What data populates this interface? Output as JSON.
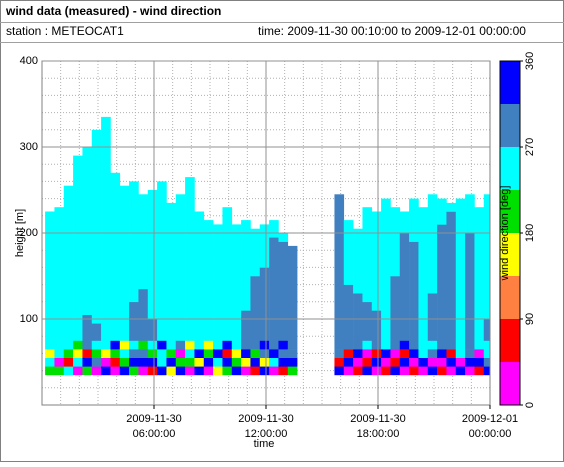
{
  "chart_data": {
    "type": "time-height",
    "title": "wind data (measured) - wind direction",
    "station": "station : METEOCAT1",
    "period": "time: 2009-11-30 00:10:00 to 2009-12-01 00:00:00",
    "xlabel": "time",
    "ylabel": "height [m]",
    "xlim": [
      "2009-11-30 00:00:00",
      "2009-12-01 00:00:00"
    ],
    "xticks": [
      "2009-11-30 06:00:00",
      "2009-11-30 12:00:00",
      "2009-11-30 18:00:00",
      "2009-12-01 00:00:00"
    ],
    "ylim": [
      0,
      400
    ],
    "yticks": [
      100,
      200,
      300,
      400
    ],
    "grid": {
      "major": true,
      "minor_y_step": 20,
      "minor_x_step_hours": 1
    },
    "cell_duration_minutes": 30,
    "low_levels": [
      35,
      45,
      55,
      65,
      75
    ],
    "columns": [
      {
        "time": "2009-11-30 00:10:00",
        "low": [
          200,
          250,
          160,
          250
        ],
        "upper": [
          [
            75,
            225,
            250
          ]
        ]
      },
      {
        "time": "2009-11-30 00:40:00",
        "low": [
          200,
          20,
          250,
          250
        ],
        "upper": [
          [
            75,
            230,
            250
          ]
        ]
      },
      {
        "time": "2009-11-30 01:10:00",
        "low": [
          250,
          70,
          200,
          250
        ],
        "upper": [
          [
            75,
            255,
            250
          ]
        ]
      },
      {
        "time": "2009-11-30 01:40:00",
        "low": [
          20,
          250,
          160,
          200
        ],
        "upper": [
          [
            75,
            290,
            250
          ]
        ]
      },
      {
        "time": "2009-11-30 02:10:00",
        "low": [
          200,
          340,
          70,
          290
        ],
        "upper": [
          [
            75,
            105,
            290
          ],
          [
            105,
            300,
            250
          ]
        ]
      },
      {
        "time": "2009-11-30 02:40:00",
        "low": [
          20,
          290,
          200,
          250
        ],
        "upper": [
          [
            75,
            95,
            290
          ],
          [
            95,
            320,
            250
          ]
        ]
      },
      {
        "time": "2009-11-30 03:10:00",
        "low": [
          340,
          20,
          160,
          250
        ],
        "upper": [
          [
            75,
            335,
            250
          ]
        ]
      },
      {
        "time": "2009-11-30 03:40:00",
        "low": [
          20,
          70,
          200,
          340
        ],
        "upper": [
          [
            75,
            270,
            250
          ]
        ]
      },
      {
        "time": "2009-11-30 04:10:00",
        "low": [
          340,
          200,
          250,
          160
        ],
        "upper": [
          [
            75,
            255,
            250
          ]
        ]
      },
      {
        "time": "2009-11-30 04:40:00",
        "low": [
          200,
          340,
          290,
          250
        ],
        "upper": [
          [
            75,
            120,
            290
          ],
          [
            120,
            260,
            250
          ]
        ]
      },
      {
        "time": "2009-11-30 05:10:00",
        "low": [
          20,
          340,
          290,
          200
        ],
        "upper": [
          [
            75,
            135,
            290
          ],
          [
            135,
            245,
            250
          ]
        ]
      },
      {
        "time": "2009-11-30 05:40:00",
        "low": [
          70,
          340,
          200,
          250
        ],
        "upper": [
          [
            75,
            100,
            290
          ],
          [
            100,
            250,
            250
          ]
        ]
      },
      {
        "time": "2009-11-30 06:10:00",
        "low": [
          340,
          250,
          250,
          340
        ],
        "upper": [
          [
            75,
            260,
            250
          ]
        ]
      },
      {
        "time": "2009-11-30 06:40:00",
        "low": [
          160,
          340,
          200,
          250
        ],
        "upper": [
          [
            75,
            235,
            250
          ]
        ]
      },
      {
        "time": "2009-11-30 07:10:00",
        "low": [
          340,
          200,
          20,
          290
        ],
        "upper": [
          [
            75,
            245,
            250
          ]
        ]
      },
      {
        "time": "2009-11-30 07:40:00",
        "low": [
          20,
          200,
          250,
          160
        ],
        "upper": [
          [
            75,
            265,
            250
          ]
        ]
      },
      {
        "time": "2009-11-30 08:10:00",
        "low": [
          340,
          160,
          340,
          250
        ],
        "upper": [
          [
            75,
            225,
            250
          ]
        ]
      },
      {
        "time": "2009-11-30 08:40:00",
        "low": [
          20,
          340,
          200,
          160
        ],
        "upper": [
          [
            75,
            215,
            250
          ]
        ]
      },
      {
        "time": "2009-11-30 09:10:00",
        "low": [
          160,
          250,
          340,
          250
        ],
        "upper": [
          [
            75,
            210,
            250
          ]
        ]
      },
      {
        "time": "2009-11-30 09:40:00",
        "low": [
          200,
          340,
          70,
          340
        ],
        "upper": [
          [
            75,
            230,
            250
          ]
        ]
      },
      {
        "time": "2009-11-30 10:10:00",
        "low": [
          340,
          200,
          160,
          250
        ],
        "upper": [
          [
            75,
            210,
            250
          ]
        ]
      },
      {
        "time": "2009-11-30 10:40:00",
        "low": [
          20,
          160,
          340,
          290
        ],
        "upper": [
          [
            75,
            110,
            290
          ],
          [
            110,
            215,
            250
          ]
        ]
      },
      {
        "time": "2009-11-30 11:10:00",
        "low": [
          70,
          340,
          200,
          290
        ],
        "upper": [
          [
            75,
            150,
            290
          ],
          [
            150,
            205,
            250
          ]
        ]
      },
      {
        "time": "2009-11-30 11:40:00",
        "low": [
          340,
          160,
          290,
          340
        ],
        "upper": [
          [
            75,
            160,
            290
          ],
          [
            160,
            210,
            250
          ]
        ]
      },
      {
        "time": "2009-11-30 12:10:00",
        "low": [
          20,
          250,
          340,
          290
        ],
        "upper": [
          [
            75,
            195,
            290
          ],
          [
            195,
            215,
            250
          ]
        ]
      },
      {
        "time": "2009-11-30 12:40:00",
        "low": [
          70,
          340,
          290,
          340
        ],
        "upper": [
          [
            75,
            190,
            290
          ],
          [
            190,
            200,
            250
          ]
        ]
      },
      {
        "time": "2009-11-30 13:10:00",
        "low": [
          200,
          340,
          290,
          290
        ],
        "upper": [
          [
            75,
            185,
            290
          ]
        ]
      },
      {
        "time": "2009-11-30 15:40:00",
        "low": [
          340,
          70,
          290,
          290
        ],
        "upper": [
          [
            75,
            245,
            290
          ]
        ]
      },
      {
        "time": "2009-11-30 16:10:00",
        "low": [
          20,
          340,
          70,
          290
        ],
        "upper": [
          [
            75,
            140,
            290
          ],
          [
            140,
            215,
            250
          ]
        ]
      },
      {
        "time": "2009-11-30 16:40:00",
        "low": [
          70,
          20,
          340,
          290
        ],
        "upper": [
          [
            75,
            130,
            290
          ],
          [
            130,
            205,
            250
          ]
        ]
      },
      {
        "time": "2009-11-30 17:10:00",
        "low": [
          340,
          70,
          20,
          250
        ],
        "upper": [
          [
            75,
            120,
            290
          ],
          [
            120,
            230,
            250
          ]
        ]
      },
      {
        "time": "2009-11-30 17:40:00",
        "low": [
          20,
          340,
          70,
          290
        ],
        "upper": [
          [
            75,
            110,
            290
          ],
          [
            110,
            225,
            250
          ]
        ]
      },
      {
        "time": "2009-11-30 18:10:00",
        "low": [
          70,
          20,
          340,
          250
        ],
        "upper": [
          [
            75,
            240,
            250
          ]
        ]
      },
      {
        "time": "2009-11-30 18:40:00",
        "low": [
          340,
          70,
          20,
          290
        ],
        "upper": [
          [
            75,
            150,
            290
          ],
          [
            150,
            230,
            250
          ]
        ]
      },
      {
        "time": "2009-11-30 19:10:00",
        "low": [
          20,
          340,
          70,
          340
        ],
        "upper": [
          [
            75,
            200,
            290
          ],
          [
            200,
            225,
            250
          ]
        ]
      },
      {
        "time": "2009-11-30 19:40:00",
        "low": [
          70,
          20,
          340,
          290
        ],
        "upper": [
          [
            75,
            190,
            290
          ],
          [
            190,
            240,
            250
          ]
        ]
      },
      {
        "time": "2009-11-30 20:10:00",
        "low": [
          20,
          340,
          250,
          250
        ],
        "upper": [
          [
            75,
            230,
            250
          ]
        ]
      },
      {
        "time": "2009-11-30 20:40:00",
        "low": [
          340,
          20,
          290,
          250
        ],
        "upper": [
          [
            75,
            130,
            290
          ],
          [
            130,
            245,
            250
          ]
        ]
      },
      {
        "time": "2009-11-30 21:10:00",
        "low": [
          70,
          20,
          340,
          290
        ],
        "upper": [
          [
            75,
            210,
            290
          ],
          [
            210,
            240,
            250
          ]
        ]
      },
      {
        "time": "2009-11-30 21:40:00",
        "low": [
          20,
          340,
          70,
          290
        ],
        "upper": [
          [
            75,
            225,
            290
          ],
          [
            225,
            235,
            250
          ]
        ]
      },
      {
        "time": "2009-11-30 22:10:00",
        "low": [
          340,
          20,
          250,
          250
        ],
        "upper": [
          [
            75,
            240,
            250
          ]
        ]
      },
      {
        "time": "2009-11-30 22:40:00",
        "low": [
          20,
          340,
          290,
          290
        ],
        "upper": [
          [
            75,
            200,
            290
          ],
          [
            200,
            245,
            250
          ]
        ]
      },
      {
        "time": "2009-11-30 23:10:00",
        "low": [
          70,
          340,
          20,
          250
        ],
        "upper": [
          [
            75,
            230,
            250
          ]
        ]
      },
      {
        "time": "2009-11-30 23:40:00",
        "low": [
          340,
          290,
          250,
          250
        ],
        "upper": [
          [
            75,
            100,
            290
          ],
          [
            100,
            245,
            250
          ]
        ]
      }
    ],
    "colorscale": {
      "label": "wind direction [deg]",
      "bounds": [
        0,
        45,
        90,
        135,
        180,
        225,
        270,
        315,
        360
      ],
      "colors": [
        "#ff00ff",
        "#ff0000",
        "#ff8040",
        "#ffff00",
        "#00e000",
        "#00ffff",
        "#4080c0",
        "#0000ff"
      ],
      "ticks": [
        0,
        90,
        180,
        270,
        360
      ]
    }
  }
}
